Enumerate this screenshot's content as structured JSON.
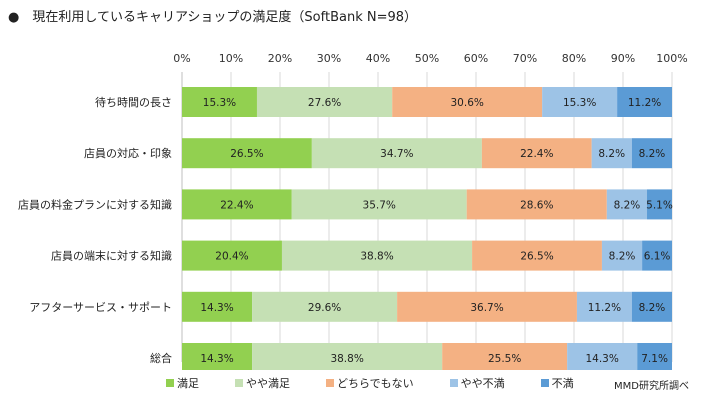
{
  "title": "●　現在利用しているキャリアショップの満足度（SoftBank N=98）",
  "source": "MMD研究所調べ",
  "colors": {
    "manzoku": "#92d050",
    "yaya_manzoku": "#c5e0b4",
    "dochira": "#f4b183",
    "yaya_fuman": "#9dc3e6",
    "fuman": "#5b9bd5",
    "grid": "#d9d9d9"
  },
  "chart_data": {
    "type": "bar",
    "stacked": true,
    "orientation": "horizontal",
    "title": "現在利用しているキャリアショップの満足度（SoftBank N=98）",
    "xlim": [
      0,
      100
    ],
    "x_tick_labels": [
      "0%",
      "10%",
      "20%",
      "30%",
      "40%",
      "50%",
      "60%",
      "70%",
      "80%",
      "90%",
      "100%"
    ],
    "categories": [
      "待ち時間の長さ",
      "店員の対応・印象",
      "店員の料金プランに対する知識",
      "店員の端末に対する知識",
      "アフターサービス・サポート",
      "総合"
    ],
    "series": [
      {
        "name": "満足",
        "color": "#92d050",
        "values": [
          15.3,
          26.5,
          22.4,
          20.4,
          14.3,
          14.3
        ],
        "labels": [
          "15.3%",
          "26.5%",
          "22.4%",
          "20.4%",
          "14.3%",
          "14.3%"
        ]
      },
      {
        "name": "やや満足",
        "color": "#c5e0b4",
        "values": [
          27.6,
          34.7,
          35.7,
          38.8,
          29.6,
          38.8
        ],
        "labels": [
          "27.6%",
          "34.7%",
          "35.7%",
          "38.8%",
          "29.6%",
          "38.8%"
        ]
      },
      {
        "name": "どちらでもない",
        "color": "#f4b183",
        "values": [
          30.6,
          22.4,
          28.6,
          26.5,
          36.7,
          25.5
        ],
        "labels": [
          "30.6%",
          "22.4%",
          "28.6%",
          "26.5%",
          "36.7%",
          "25.5%"
        ]
      },
      {
        "name": "やや不満",
        "color": "#9dc3e6",
        "values": [
          15.3,
          8.2,
          8.2,
          8.2,
          11.2,
          14.3
        ],
        "labels": [
          "15.3%",
          "8.2%",
          "8.2%",
          "8.2%",
          "11.2%",
          "14.3%"
        ]
      },
      {
        "name": "不満",
        "color": "#5b9bd5",
        "values": [
          11.2,
          8.2,
          5.1,
          6.1,
          8.2,
          7.1
        ],
        "labels": [
          "11.2%",
          "8.2%",
          "5.1%",
          "6.1%",
          "8.2%",
          "7.1%"
        ]
      }
    ],
    "grid": true,
    "legend_position": "bottom"
  }
}
